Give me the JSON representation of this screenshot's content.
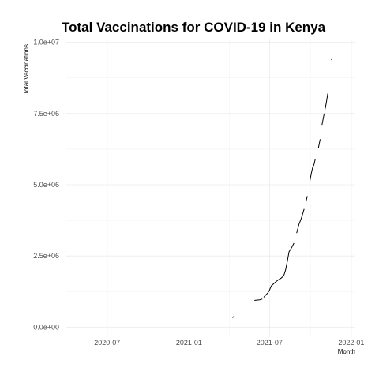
{
  "chart_data": {
    "type": "line",
    "title": "Total Vaccinations for COVID-19 in Kenya",
    "xlabel": "Month",
    "ylabel": "Total Vaccinations",
    "x_tick_labels": [
      "2020-07",
      "2021-01",
      "2021-07",
      "2022-01"
    ],
    "x_tick_dates": [
      "2020-07-01",
      "2021-01-01",
      "2021-07-01",
      "2022-01-01"
    ],
    "y_tick_labels": [
      "0.0e+00",
      "2.5e+06",
      "5.0e+06",
      "7.5e+06",
      "1.0e+07"
    ],
    "y_tick_values": [
      0,
      2500000,
      5000000,
      7500000,
      10000000
    ],
    "xlim": [
      "2020-03-31",
      "2022-01-10"
    ],
    "ylim": [
      -350000,
      10100000
    ],
    "grid": true,
    "legend": "none",
    "line_color": "#000000",
    "series": [
      {
        "segments": [
          [
            [
              "2021-04-09",
              330000
            ],
            [
              "2021-04-11",
              380000
            ]
          ],
          [
            [
              "2021-05-28",
              940000
            ],
            [
              "2021-06-02",
              950000
            ],
            [
              "2021-06-09",
              960000
            ],
            [
              "2021-06-15",
              990000
            ]
          ],
          [
            [
              "2021-06-18",
              1050000
            ],
            [
              "2021-06-22",
              1120000
            ],
            [
              "2021-06-27",
              1200000
            ],
            [
              "2021-07-01",
              1300000
            ],
            [
              "2021-07-05",
              1450000
            ],
            [
              "2021-07-12",
              1550000
            ],
            [
              "2021-07-20",
              1650000
            ],
            [
              "2021-07-27",
              1720000
            ],
            [
              "2021-08-02",
              1800000
            ],
            [
              "2021-08-06",
              2000000
            ],
            [
              "2021-08-10",
              2300000
            ],
            [
              "2021-08-14",
              2650000
            ],
            [
              "2021-08-20",
              2800000
            ],
            [
              "2021-08-25",
              2950000
            ]
          ],
          [
            [
              "2021-08-31",
              3300000
            ],
            [
              "2021-09-05",
              3600000
            ],
            [
              "2021-09-10",
              3800000
            ],
            [
              "2021-09-14",
              4000000
            ],
            [
              "2021-09-17",
              4150000
            ]
          ],
          [
            [
              "2021-09-21",
              4400000
            ],
            [
              "2021-09-24",
              4600000
            ]
          ],
          [
            [
              "2021-09-30",
              5150000
            ],
            [
              "2021-10-03",
              5400000
            ],
            [
              "2021-10-06",
              5600000
            ],
            [
              "2021-10-09",
              5700000
            ],
            [
              "2021-10-12",
              5900000
            ]
          ],
          [
            [
              "2021-10-19",
              6300000
            ],
            [
              "2021-10-23",
              6600000
            ]
          ],
          [
            [
              "2021-10-27",
              7100000
            ],
            [
              "2021-11-01",
              7500000
            ]
          ],
          [
            [
              "2021-11-03",
              7650000
            ],
            [
              "2021-11-06",
              7900000
            ],
            [
              "2021-11-09",
              8200000
            ]
          ],
          [
            [
              "2021-11-17",
              9380000
            ],
            [
              "2021-11-19",
              9420000
            ]
          ]
        ]
      }
    ]
  }
}
